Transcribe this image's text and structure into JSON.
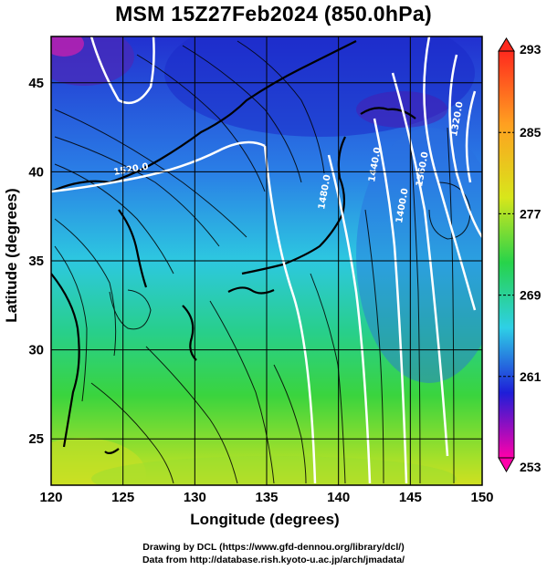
{
  "figure": {
    "title": "MSM 15Z27Feb2024 (850.0hPa)",
    "xlabel": "Longitude (degrees)",
    "ylabel": "Latitude  (degrees)",
    "credit_line1": "Drawing by DCL (https://www.gfd-dennou.org/library/dcl/)",
    "credit_line2": "Data from http://database.rish.kyoto-u.ac.jp/arch/jmadata/"
  },
  "chart_data": {
    "type": "heatmap",
    "xlim": [
      120,
      150
    ],
    "ylim": [
      22.4,
      47.6
    ],
    "x_ticks": [
      "120",
      "125",
      "130",
      "135",
      "140",
      "145",
      "150"
    ],
    "y_ticks": [
      "25",
      "30",
      "35",
      "40",
      "45"
    ],
    "grid": true,
    "colorbar": {
      "min": 253,
      "max": 293,
      "tick_labels": [
        "293",
        "285",
        "277",
        "269",
        "261",
        "253"
      ],
      "colors": [
        "#ff00aa",
        "#1e1ed8",
        "#2ed0e6",
        "#27d34a",
        "#d8e61b",
        "#ffa020",
        "#ff2a1e"
      ]
    },
    "contour_labels": [
      "1520.0",
      "1480.0",
      "1440.0",
      "1400.0",
      "1360.0",
      "1320.0"
    ]
  }
}
